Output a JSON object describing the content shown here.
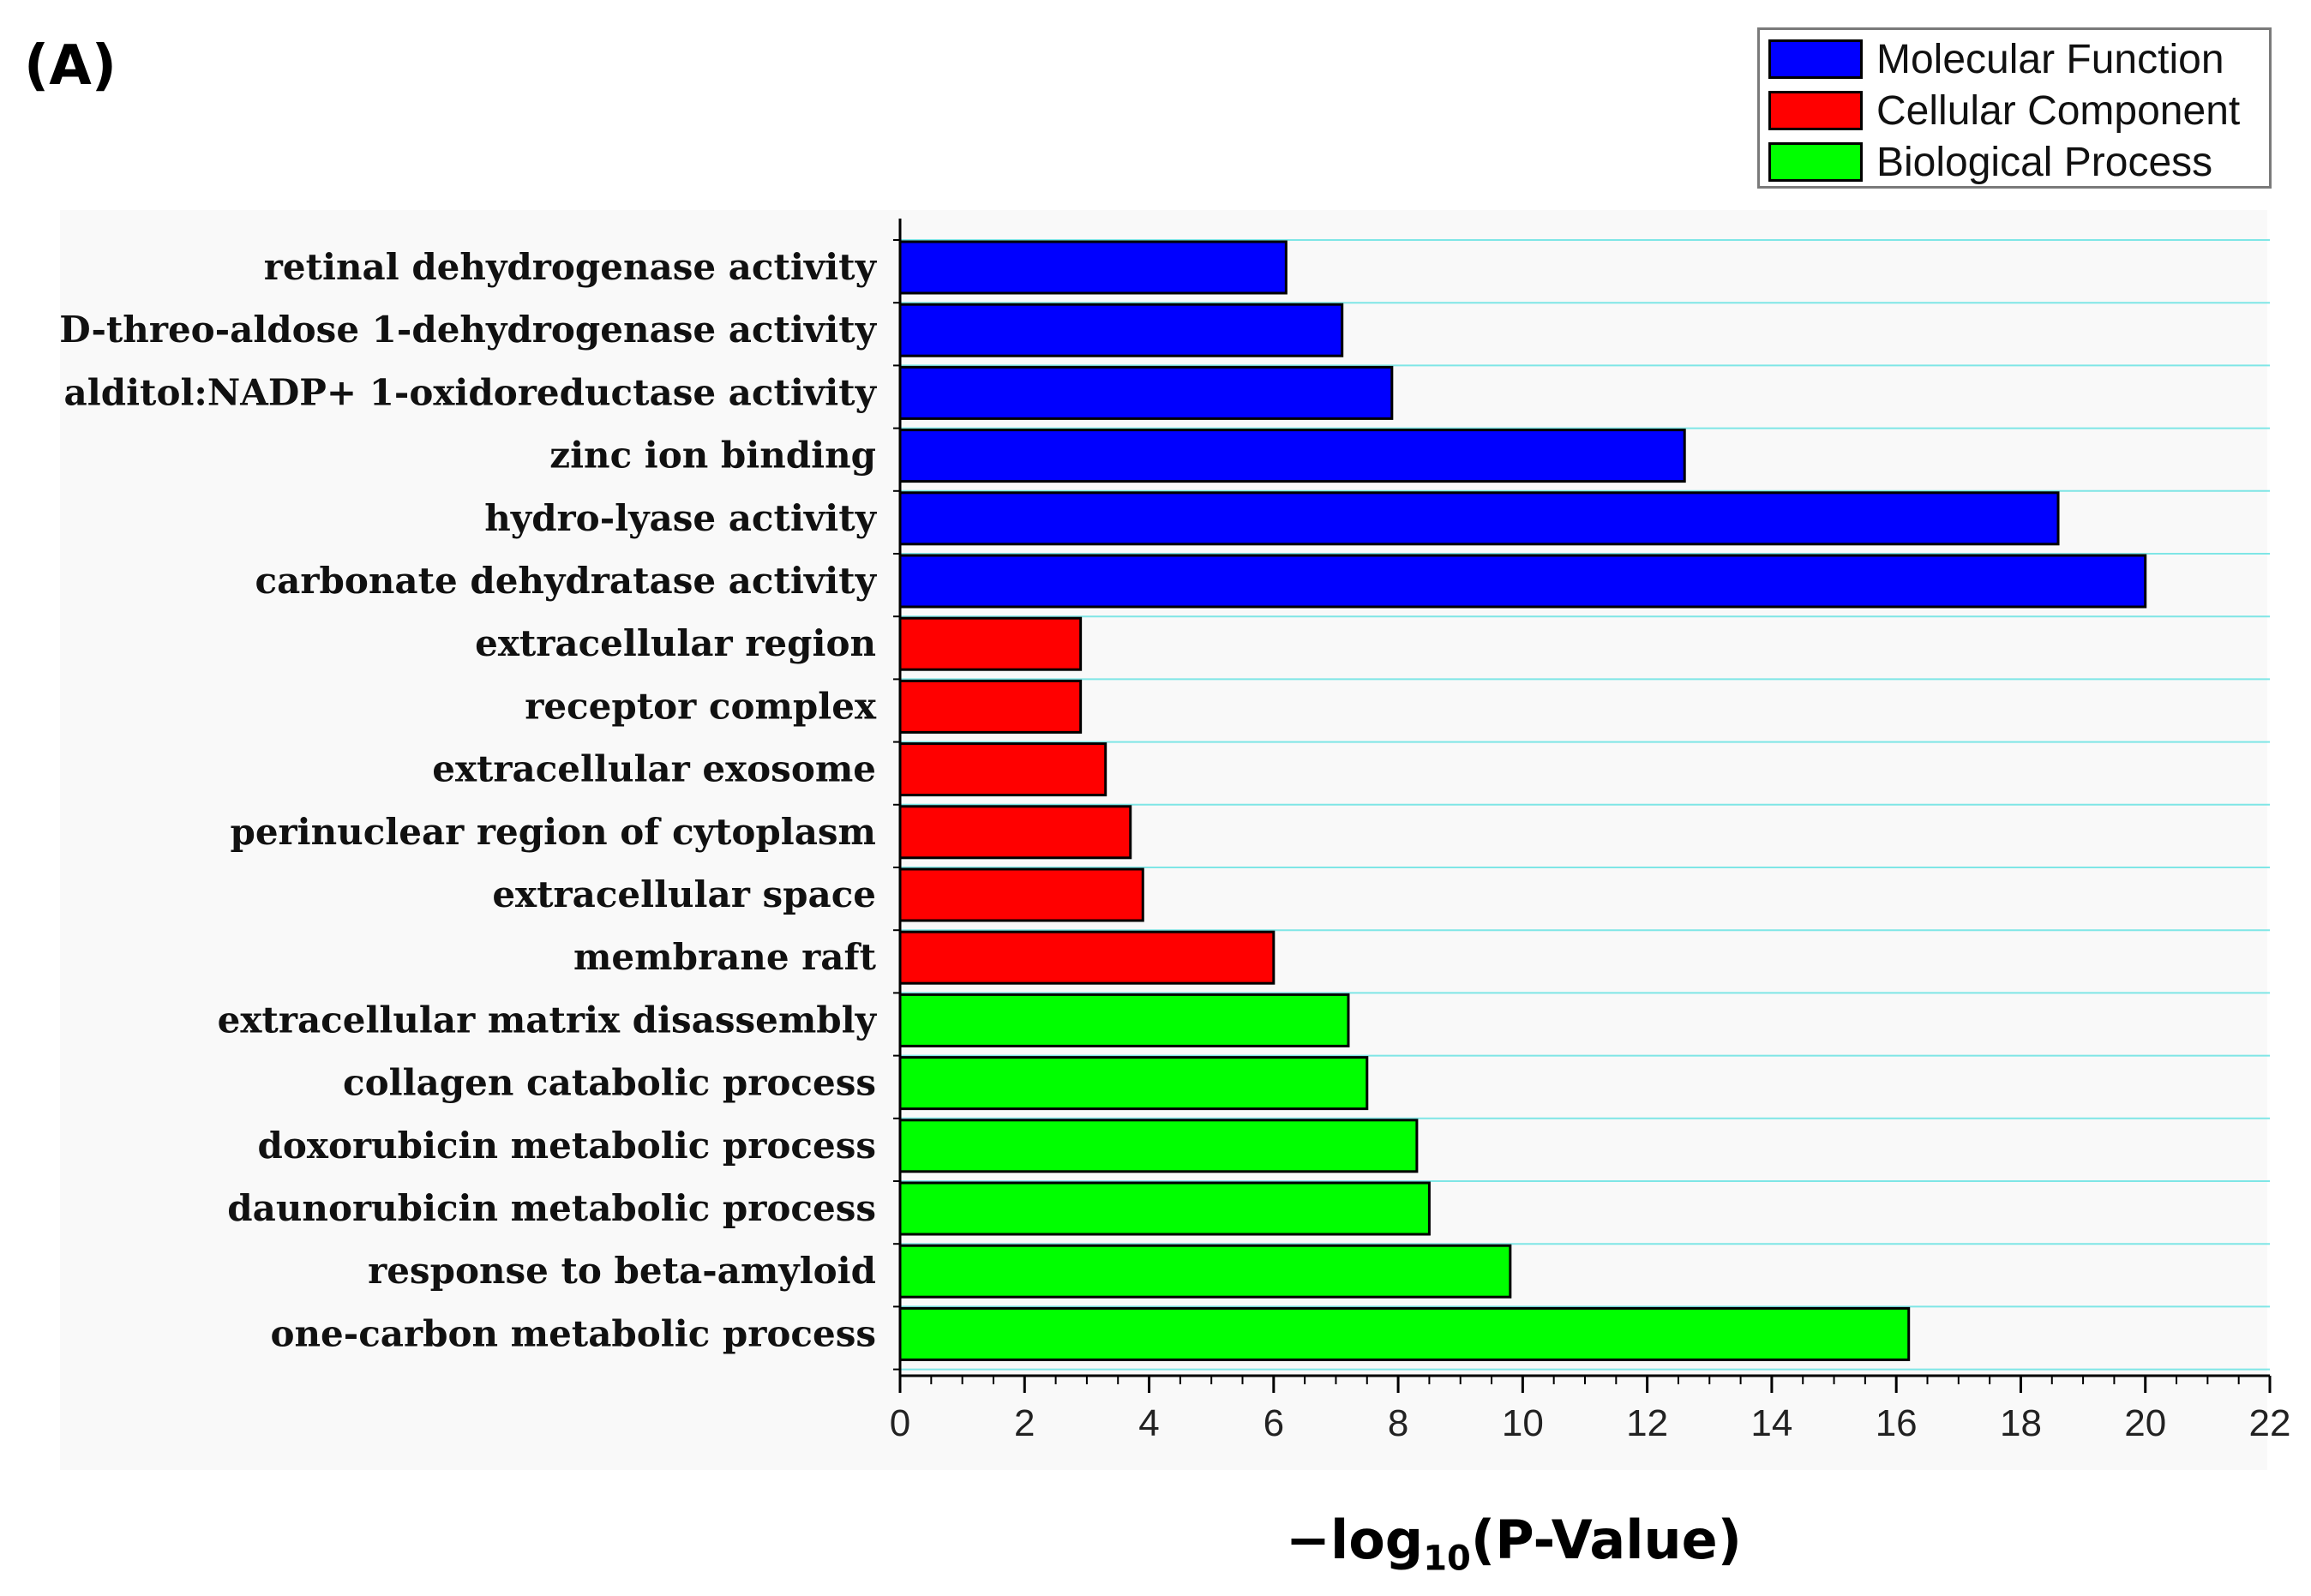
{
  "panel_label": "(A)",
  "legend": [
    {
      "label": "Molecular Function",
      "color": "#0000ff"
    },
    {
      "label": "Cellular Component",
      "color": "#ff0000"
    },
    {
      "label": "Biological Process",
      "color": "#00ff00"
    }
  ],
  "x_title": {
    "prefix": "−log",
    "subscript": "10",
    "suffix": "(P-Value)"
  },
  "chart_data": {
    "type": "bar",
    "orientation": "horizontal",
    "title": "",
    "xlabel": "−log10(P-Value)",
    "ylabel": "",
    "xlim": [
      0,
      22
    ],
    "xticks": [
      0,
      2,
      4,
      6,
      8,
      10,
      12,
      14,
      16,
      18,
      20,
      22
    ],
    "grid": "horizontal lines between bars",
    "legend_position": "top-right",
    "categories": [
      "retinal dehydrogenase activity",
      "D-threo-aldose 1-dehydrogenase activity",
      "alditol:NADP+ 1-oxidoreductase activity",
      "zinc ion binding",
      "hydro-lyase activity",
      "carbonate dehydratase activity",
      "extracellular region",
      "receptor complex",
      "extracellular exosome",
      "perinuclear region of cytoplasm",
      "extracellular space",
      "membrane raft",
      "extracellular matrix disassembly",
      "collagen catabolic process",
      "doxorubicin metabolic process",
      "daunorubicin metabolic process",
      "response to beta-amyloid",
      "one-carbon metabolic process"
    ],
    "values": [
      6.2,
      7.1,
      7.9,
      12.6,
      18.6,
      20.0,
      2.9,
      2.9,
      3.3,
      3.7,
      3.9,
      6.0,
      7.2,
      7.5,
      8.3,
      8.5,
      9.8,
      16.2
    ],
    "groups": [
      "Molecular Function",
      "Molecular Function",
      "Molecular Function",
      "Molecular Function",
      "Molecular Function",
      "Molecular Function",
      "Cellular Component",
      "Cellular Component",
      "Cellular Component",
      "Cellular Component",
      "Cellular Component",
      "Cellular Component",
      "Biological Process",
      "Biological Process",
      "Biological Process",
      "Biological Process",
      "Biological Process",
      "Biological Process"
    ]
  }
}
